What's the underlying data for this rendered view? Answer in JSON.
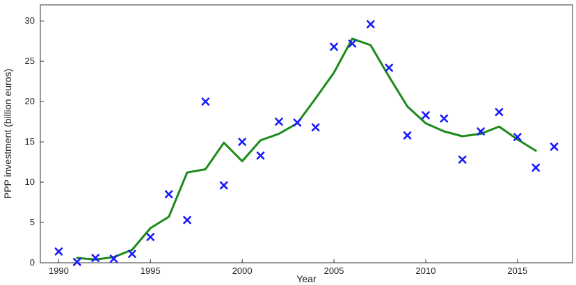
{
  "chart_data": {
    "type": "scatter",
    "title": "",
    "xlabel": "Year",
    "ylabel": "PPP investment (billion euros)",
    "xlim": [
      1989,
      2018
    ],
    "ylim": [
      0,
      32
    ],
    "xticks": [
      1990,
      1995,
      2000,
      2005,
      2010,
      2015
    ],
    "yticks": [
      0,
      5,
      10,
      15,
      20,
      25,
      30
    ],
    "grid": false,
    "legend": "none",
    "series": [
      {
        "kind": "scatter",
        "marker": "x",
        "color": "#1a1aff",
        "x": [
          1990,
          1991,
          1992,
          1993,
          1994,
          1995,
          1996,
          1997,
          1998,
          1999,
          2000,
          2001,
          2002,
          2003,
          2004,
          2005,
          2006,
          2007,
          2008,
          2009,
          2010,
          2011,
          2012,
          2013,
          2014,
          2015,
          2016,
          2017
        ],
        "y": [
          1.4,
          0.1,
          0.6,
          0.5,
          1.1,
          3.2,
          8.5,
          5.3,
          20.0,
          9.6,
          15.0,
          13.3,
          17.5,
          17.4,
          16.8,
          26.8,
          27.2,
          29.6,
          24.2,
          15.8,
          18.3,
          17.9,
          12.8,
          16.3,
          18.7,
          15.6,
          11.8,
          14.4
        ]
      },
      {
        "kind": "line",
        "color": "#1a8a1a",
        "x": [
          1991,
          1992,
          1993,
          1994,
          1995,
          1996,
          1997,
          1998,
          1999,
          2000,
          2001,
          2002,
          2003,
          2004,
          2005,
          2006,
          2007,
          2008,
          2009,
          2010,
          2011,
          2012,
          2013,
          2014,
          2015,
          2016
        ],
        "y": [
          0.6,
          0.4,
          0.7,
          1.6,
          4.3,
          5.7,
          11.2,
          11.6,
          14.9,
          12.6,
          15.2,
          16.0,
          17.3,
          20.4,
          23.6,
          27.8,
          27.0,
          23.1,
          19.4,
          17.3,
          16.3,
          15.7,
          16.0,
          16.9,
          15.3,
          13.9
        ]
      }
    ]
  }
}
